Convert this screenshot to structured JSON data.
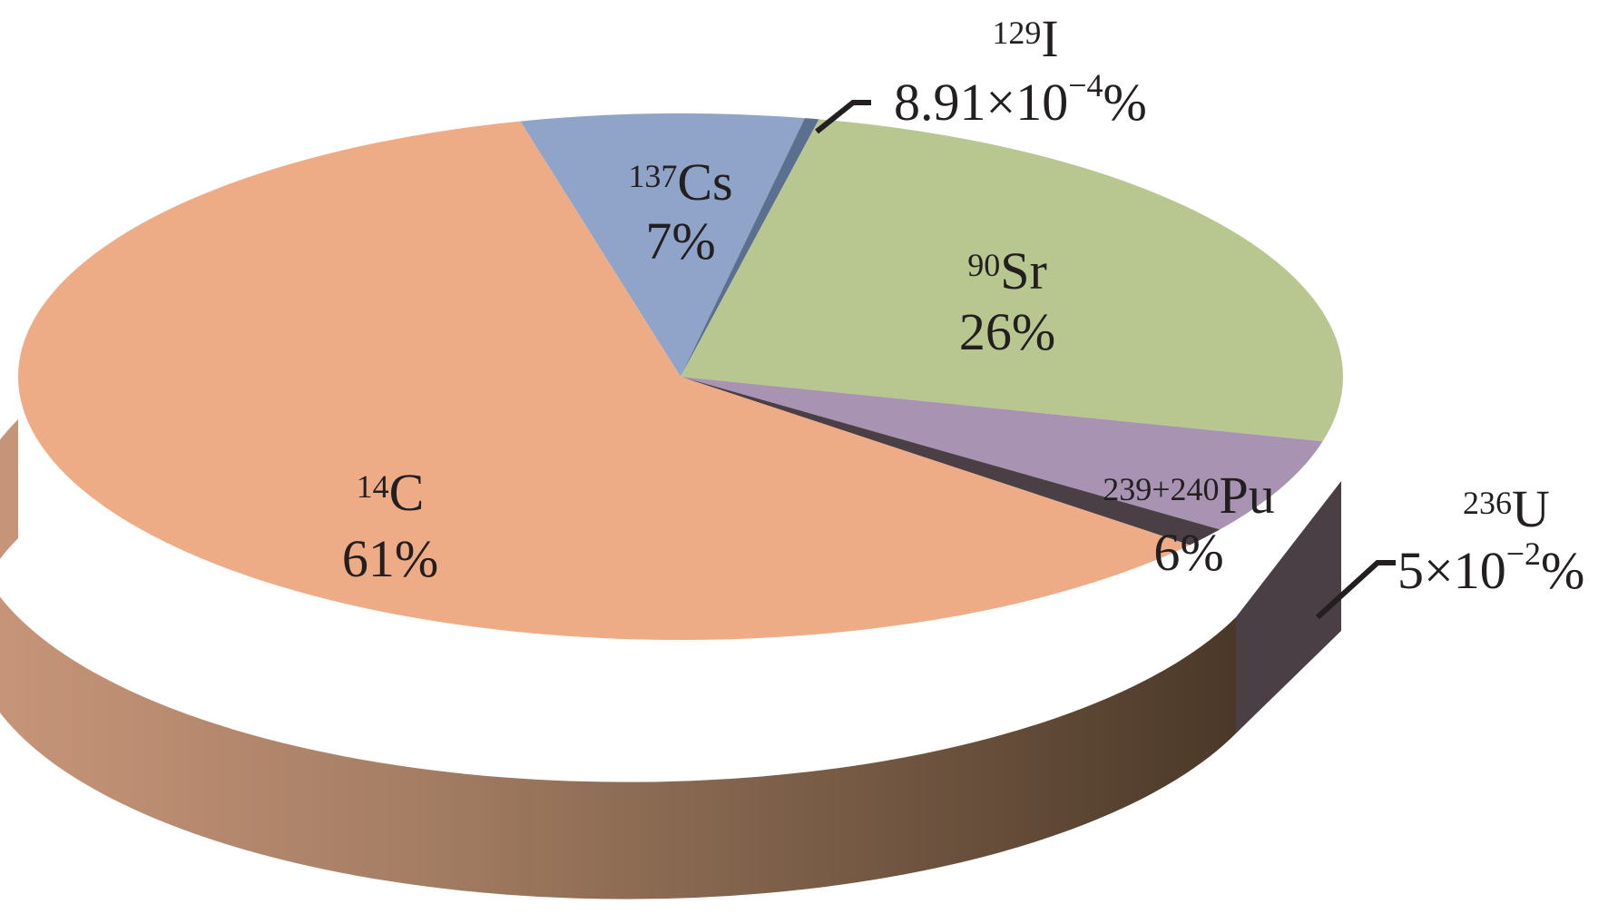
{
  "chart_data": {
    "type": "pie",
    "style": "3d",
    "title": "",
    "slices": [
      {
        "isotope": "137",
        "element": "Cs",
        "pct_label": "7%",
        "value": 7,
        "color": "#8fa4c8"
      },
      {
        "isotope": "129",
        "element": "I",
        "pct_label": "8.91×10",
        "pct_exp": "−4",
        "pct_suffix": "%",
        "value": 0.000891,
        "color": "#5b6f8f"
      },
      {
        "isotope": "90",
        "element": "Sr",
        "pct_label": "26%",
        "value": 26,
        "color": "#b8c690"
      },
      {
        "isotope": "239+240",
        "element": "Pu",
        "pct_label": "6%",
        "value": 6,
        "color": "#a893b2"
      },
      {
        "isotope": "236",
        "element": "U",
        "pct_label": "5×10",
        "pct_exp": "−2",
        "pct_suffix": "%",
        "value": 0.05,
        "color": "#4a3f44"
      },
      {
        "isotope": "14",
        "element": "C",
        "pct_label": "61%",
        "value": 61,
        "color": "#eeac86"
      }
    ],
    "legend": "none"
  }
}
